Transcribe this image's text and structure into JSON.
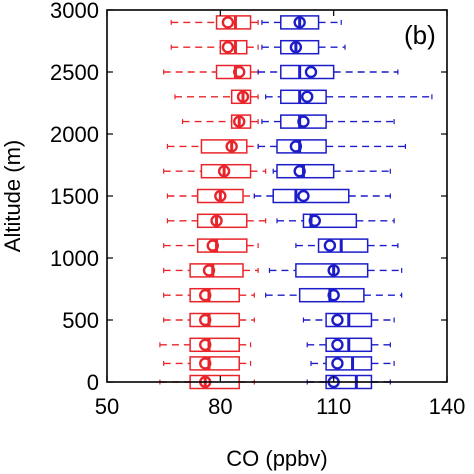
{
  "chart_data": {
    "type": "boxplot",
    "panel_label": "(b)",
    "xlabel": "CO (ppbv)",
    "ylabel": "Altitude (m)",
    "xlim": [
      50,
      140
    ],
    "ylim": [
      0,
      3000
    ],
    "xticks": [
      50,
      80,
      110,
      140
    ],
    "yticks": [
      0,
      500,
      1000,
      1500,
      2000,
      2500,
      3000
    ],
    "grid": false,
    "legend": "none",
    "orientation": "horizontal",
    "series": [
      {
        "color": "#e8252a",
        "boxes": [
          {
            "altitude": 0,
            "whisker_low": 64,
            "q1": 72,
            "median": 76,
            "q3": 85,
            "whisker_high": 89,
            "mean": 76
          },
          {
            "altitude": 150,
            "whisker_low": 65,
            "q1": 72,
            "median": 77,
            "q3": 85,
            "whisker_high": 88,
            "mean": 76
          },
          {
            "altitude": 300,
            "whisker_low": 64,
            "q1": 72,
            "median": 77,
            "q3": 85,
            "whisker_high": 88,
            "mean": 76
          },
          {
            "altitude": 500,
            "whisker_low": 65,
            "q1": 72,
            "median": 77,
            "q3": 85,
            "whisker_high": 89,
            "mean": 76
          },
          {
            "altitude": 700,
            "whisker_low": 65,
            "q1": 72,
            "median": 77,
            "q3": 85,
            "whisker_high": 89,
            "mean": 76
          },
          {
            "altitude": 900,
            "whisker_low": 65,
            "q1": 72,
            "median": 78,
            "q3": 86,
            "whisker_high": 90,
            "mean": 77
          },
          {
            "altitude": 1100,
            "whisker_low": 65,
            "q1": 74,
            "median": 79,
            "q3": 87,
            "whisker_high": 90,
            "mean": 78
          },
          {
            "altitude": 1300,
            "whisker_low": 66,
            "q1": 74,
            "median": 79,
            "q3": 87,
            "whisker_high": 92,
            "mean": 79
          },
          {
            "altitude": 1500,
            "whisker_low": 66,
            "q1": 74,
            "median": 80,
            "q3": 86,
            "whisker_high": 89,
            "mean": 80
          },
          {
            "altitude": 1700,
            "whisker_low": 65,
            "q1": 75,
            "median": 81,
            "q3": 88,
            "whisker_high": 92,
            "mean": 81
          },
          {
            "altitude": 1900,
            "whisker_low": 66,
            "q1": 75,
            "median": 83,
            "q3": 87,
            "whisker_high": 90,
            "mean": 83
          },
          {
            "altitude": 2100,
            "whisker_low": 70,
            "q1": 83,
            "median": 85,
            "q3": 88,
            "whisker_high": 90,
            "mean": 85
          },
          {
            "altitude": 2300,
            "whisker_low": 68,
            "q1": 83,
            "median": 86,
            "q3": 88,
            "whisker_high": 90,
            "mean": 86
          },
          {
            "altitude": 2500,
            "whisker_low": 65,
            "q1": 79,
            "median": 84,
            "q3": 88,
            "whisker_high": 90,
            "mean": 85
          },
          {
            "altitude": 2700,
            "whisker_low": 67,
            "q1": 80,
            "median": 84,
            "q3": 87,
            "whisker_high": 90,
            "mean": 82
          },
          {
            "altitude": 2900,
            "whisker_low": 67,
            "q1": 79,
            "median": 84,
            "q3": 88,
            "whisker_high": 90,
            "mean": 82
          }
        ]
      },
      {
        "color": "#1c1cc8",
        "boxes": [
          {
            "altitude": 0,
            "whisker_low": 103,
            "q1": 108,
            "median": 116,
            "q3": 120,
            "whisker_high": 125,
            "mean": 110
          },
          {
            "altitude": 150,
            "whisker_low": 104,
            "q1": 108,
            "median": 115,
            "q3": 120,
            "whisker_high": 126,
            "mean": 111
          },
          {
            "altitude": 300,
            "whisker_low": 103,
            "q1": 108,
            "median": 114,
            "q3": 120,
            "whisker_high": 125,
            "mean": 111
          },
          {
            "altitude": 500,
            "whisker_low": 102,
            "q1": 108,
            "median": 114,
            "q3": 120,
            "whisker_high": 126,
            "mean": 111
          },
          {
            "altitude": 700,
            "whisker_low": 92,
            "q1": 101,
            "median": 109,
            "q3": 118,
            "whisker_high": 128,
            "mean": 110
          },
          {
            "altitude": 900,
            "whisker_low": 93,
            "q1": 100,
            "median": 110,
            "q3": 119,
            "whisker_high": 128,
            "mean": 110
          },
          {
            "altitude": 1100,
            "whisker_low": 100,
            "q1": 106,
            "median": 112,
            "q3": 119,
            "whisker_high": 127,
            "mean": 109
          },
          {
            "altitude": 1300,
            "whisker_low": 95,
            "q1": 102,
            "median": 104,
            "q3": 116,
            "whisker_high": 126,
            "mean": 105
          },
          {
            "altitude": 1500,
            "whisker_low": 89,
            "q1": 94,
            "median": 100,
            "q3": 114,
            "whisker_high": 125,
            "mean": 102
          },
          {
            "altitude": 1700,
            "whisker_low": 94,
            "q1": 95,
            "median": 102,
            "q3": 110,
            "whisker_high": 125,
            "mean": 101
          },
          {
            "altitude": 1900,
            "whisker_low": 90,
            "q1": 95,
            "median": 101,
            "q3": 108,
            "whisker_high": 129,
            "mean": 100
          },
          {
            "altitude": 2100,
            "whisker_low": 91,
            "q1": 96,
            "median": 101,
            "q3": 108,
            "whisker_high": 126,
            "mean": 102
          },
          {
            "altitude": 2300,
            "whisker_low": 92,
            "q1": 96,
            "median": 101,
            "q3": 108,
            "whisker_high": 136,
            "mean": 103
          },
          {
            "altitude": 2500,
            "whisker_low": 90,
            "q1": 96,
            "median": 101,
            "q3": 110,
            "whisker_high": 127,
            "mean": 104
          },
          {
            "altitude": 2700,
            "whisker_low": 91,
            "q1": 96,
            "median": 100,
            "q3": 106,
            "whisker_high": 113,
            "mean": 100
          },
          {
            "altitude": 2900,
            "whisker_low": 91,
            "q1": 96,
            "median": 101,
            "q3": 106,
            "whisker_high": 112,
            "mean": 101
          }
        ]
      }
    ]
  }
}
